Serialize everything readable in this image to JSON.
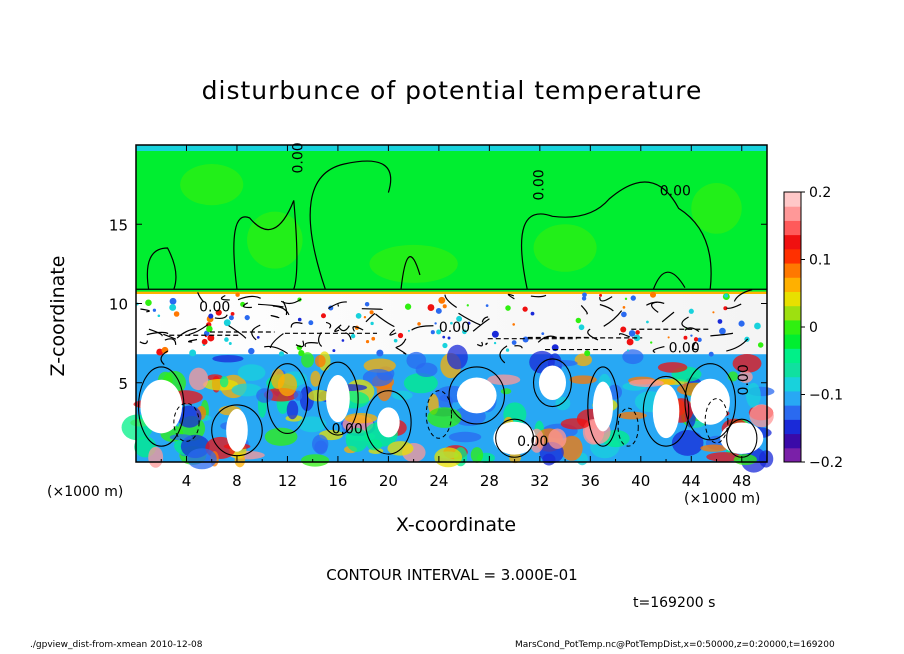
{
  "chart_data": {
    "type": "heatmap",
    "title": "disturbunce of potential temperature",
    "xlabel": "X-coordinate",
    "ylabel": "Z-coordinate",
    "x_unit": "(×1000 m)",
    "x_ticks": [
      4,
      8,
      12,
      16,
      20,
      24,
      28,
      32,
      36,
      40,
      44,
      48
    ],
    "y_ticks": [
      5,
      10,
      15
    ],
    "xlim": [
      0,
      50
    ],
    "ylim": [
      0,
      20
    ],
    "colorbar": {
      "ticks": [
        "0.2",
        "0.1",
        "0",
        "−0.1",
        "−0.2"
      ],
      "range": [
        -0.2,
        0.2
      ],
      "colors": [
        "#7a20a8",
        "#3a0aa8",
        "#1a2ad8",
        "#2a6af0",
        "#28a8f4",
        "#18d2dc",
        "#10e0a0",
        "#00f088",
        "#00ee30",
        "#30f010",
        "#9ee010",
        "#e8e000",
        "#ffb000",
        "#ff7800",
        "#ff3000",
        "#f01010",
        "#ff5a5a",
        "#ff9898",
        "#ffc8c8"
      ]
    },
    "contour_labels": [
      "0.00",
      "0.00",
      "0.00",
      "0.00",
      "0.00",
      "0.00",
      "0.00",
      "0.00",
      "0.00"
    ],
    "contour_interval": "CONTOUR INTERVAL = 3.000E-01",
    "time": "t=169200 s"
  },
  "footer": {
    "left": "./gpview_dist-from-xmean  2010-12-08",
    "right": "MarsCond_PotTemp.nc@PotTempDist,x=0:50000,z=0:20000,t=169200"
  }
}
